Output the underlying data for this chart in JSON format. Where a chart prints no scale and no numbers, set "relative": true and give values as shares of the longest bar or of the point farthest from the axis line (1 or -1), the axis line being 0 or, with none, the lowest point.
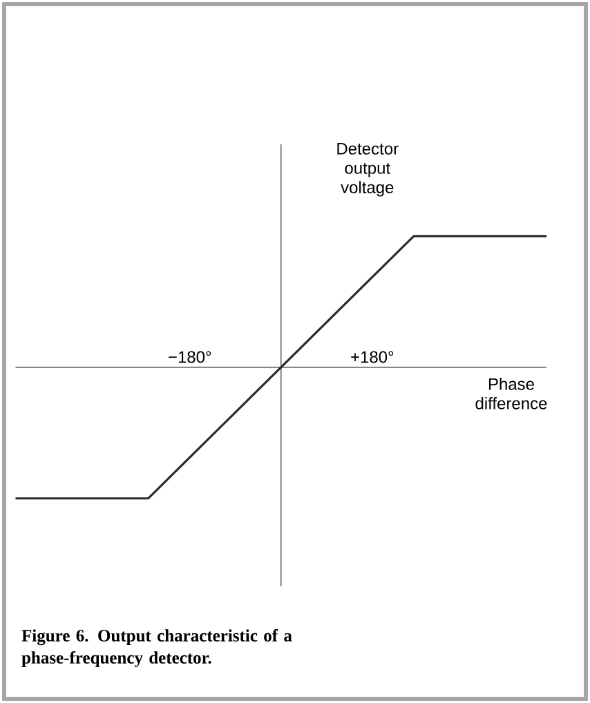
{
  "chart_data": {
    "type": "line",
    "relative": true,
    "x": [
      -524,
      -262,
      262,
      524
    ],
    "series": [
      {
        "color": "#2b2b2b",
        "values": [
          -1,
          -1,
          1,
          1
        ]
      }
    ],
    "xlim": [
      -524,
      524
    ],
    "xticks": [
      {
        "value": -180,
        "label": "−180°"
      },
      {
        "value": 180,
        "label": "+180°"
      }
    ],
    "xlabel": "Phase difference",
    "ylabel": "Detector output voltage",
    "annotations": [
      "Figure 6. Output characteristic of a phase-frequency detector."
    ]
  }
}
